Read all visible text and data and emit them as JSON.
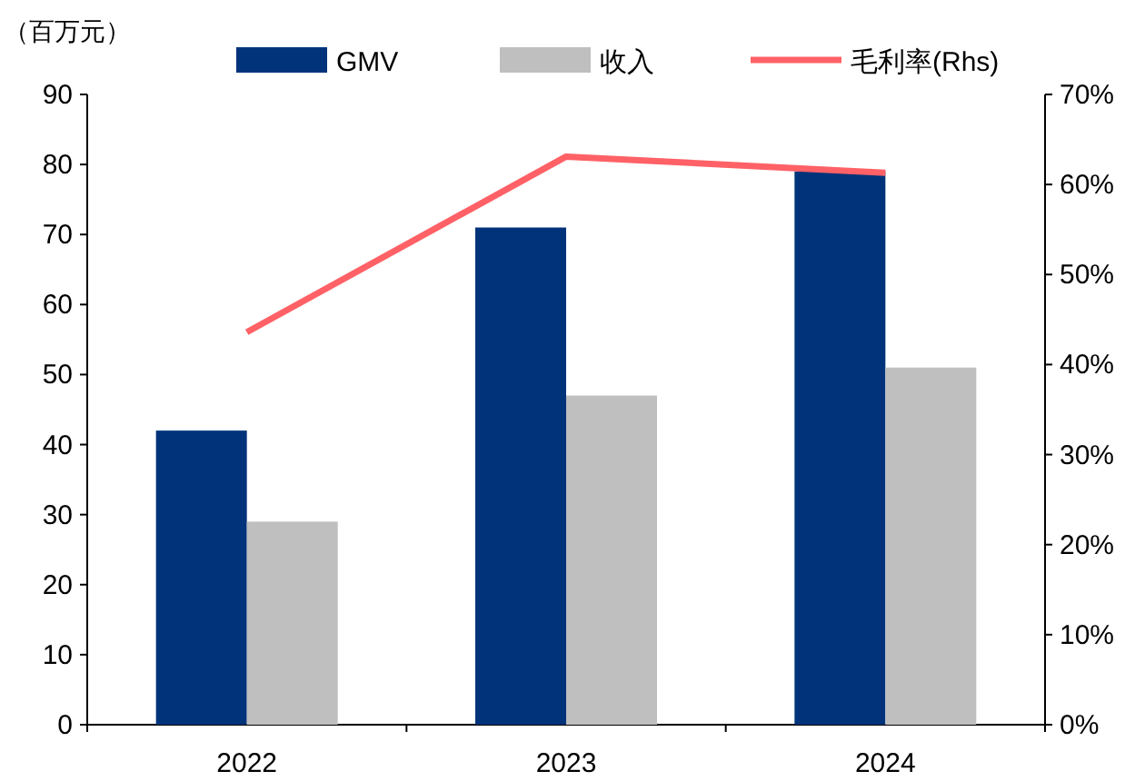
{
  "chart_data": {
    "type": "bar",
    "ylabel": "（百万元）",
    "categories": [
      "2022",
      "2023",
      "2024"
    ],
    "series": [
      {
        "name": "GMV",
        "color": "#00337a",
        "values": [
          42,
          71,
          79
        ]
      },
      {
        "name": "收入",
        "color": "#bfbfbf",
        "values": [
          29,
          47,
          51
        ]
      },
      {
        "name": "毛利率(Rhs)",
        "type": "line",
        "axis": "y2",
        "color": "#ff6166",
        "values": [
          43.6,
          63.1,
          61.3
        ]
      }
    ],
    "ylim": [
      0,
      90
    ],
    "yticks": [
      0,
      10,
      20,
      30,
      40,
      50,
      60,
      70,
      80,
      90
    ],
    "y2lim": [
      0,
      70
    ],
    "y2ticks": [
      {
        "value": 0,
        "label": "0%"
      },
      {
        "value": 10,
        "label": "10%"
      },
      {
        "value": 20,
        "label": "20%"
      },
      {
        "value": 30,
        "label": "30%"
      },
      {
        "value": 40,
        "label": "40%"
      },
      {
        "value": 50,
        "label": "50%"
      },
      {
        "value": 60,
        "label": "60%"
      },
      {
        "value": 70,
        "label": "70%"
      }
    ],
    "legend": "top",
    "grid": false
  }
}
